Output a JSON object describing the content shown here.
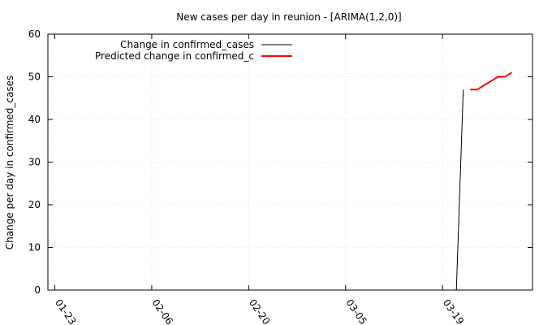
{
  "chart_data": {
    "type": "line",
    "title": "New cases per day in reunion -  [ARIMA(1,2,0)]",
    "xlabel": "",
    "ylabel": "Change per day in confirmed_cases",
    "xlim": [
      "2020-01-22",
      "2020-04-01"
    ],
    "ylim": [
      0,
      60
    ],
    "y_ticks": [
      0,
      10,
      20,
      30,
      40,
      50,
      60
    ],
    "x_ticks": [
      {
        "date": "2020-01-23",
        "label": "01-23"
      },
      {
        "date": "2020-02-06",
        "label": "02-06"
      },
      {
        "date": "2020-02-20",
        "label": "02-20"
      },
      {
        "date": "2020-03-05",
        "label": "03-05"
      },
      {
        "date": "2020-03-19",
        "label": "03-19"
      }
    ],
    "grid": true,
    "legend_position": "top-left",
    "series": [
      {
        "name": "Change in confirmed_cases",
        "color": "#000000",
        "points": [
          {
            "x": "2020-03-21",
            "y": 0
          },
          {
            "x": "2020-03-22",
            "y": 47
          }
        ]
      },
      {
        "name": "Predicted change in confirmed_c",
        "color": "#ff0000",
        "points": [
          {
            "x": "2020-03-23",
            "y": 47
          },
          {
            "x": "2020-03-24",
            "y": 47
          },
          {
            "x": "2020-03-25",
            "y": 48
          },
          {
            "x": "2020-03-26",
            "y": 49
          },
          {
            "x": "2020-03-27",
            "y": 50
          },
          {
            "x": "2020-03-28",
            "y": 50
          },
          {
            "x": "2020-03-29",
            "y": 51
          }
        ]
      }
    ]
  }
}
